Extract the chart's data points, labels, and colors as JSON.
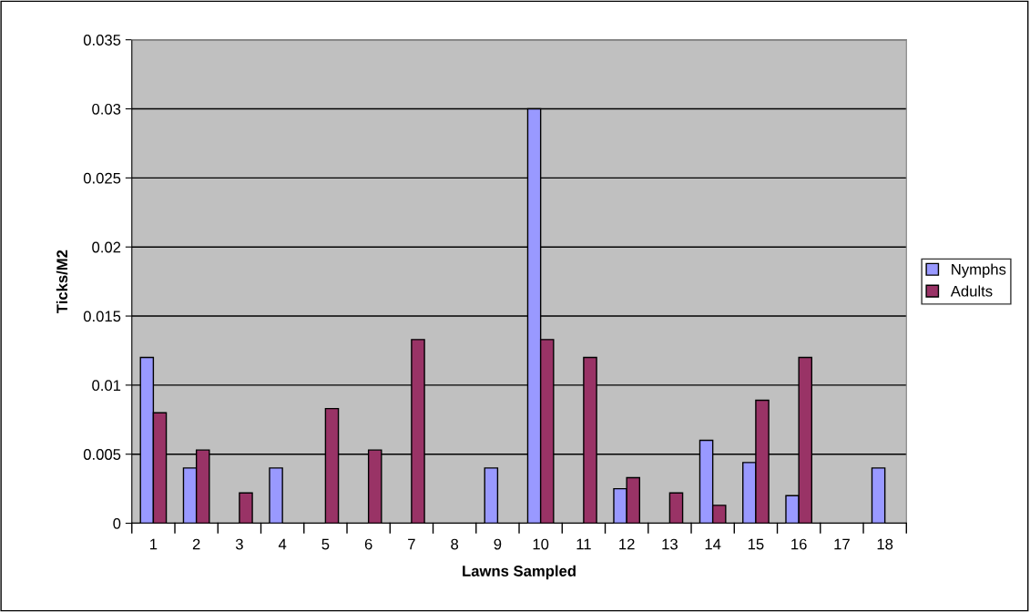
{
  "chart_data": {
    "type": "bar",
    "xlabel": "Lawns Sampled",
    "ylabel": "Ticks/M2",
    "categories": [
      "1",
      "2",
      "3",
      "4",
      "5",
      "6",
      "7",
      "8",
      "9",
      "10",
      "11",
      "12",
      "13",
      "14",
      "15",
      "16",
      "17",
      "18"
    ],
    "series": [
      {
        "name": "Nymphs",
        "color": "#9999ff",
        "values": [
          0.012,
          0.004,
          null,
          0.004,
          null,
          null,
          null,
          null,
          0.004,
          0.03,
          null,
          0.0025,
          null,
          0.006,
          0.0044,
          0.002,
          null,
          0.004
        ]
      },
      {
        "name": "Adults",
        "color": "#993366",
        "values": [
          0.008,
          0.0053,
          0.0022,
          null,
          0.0083,
          0.0053,
          0.0133,
          null,
          null,
          0.0133,
          0.012,
          0.0033,
          0.0022,
          0.0013,
          0.0089,
          0.012,
          null,
          null
        ]
      }
    ],
    "ylim": [
      0,
      0.035
    ],
    "yticks": [
      0,
      0.005,
      0.01,
      0.015,
      0.02,
      0.025,
      0.03,
      0.035
    ],
    "grid": "y",
    "legend": "right"
  }
}
